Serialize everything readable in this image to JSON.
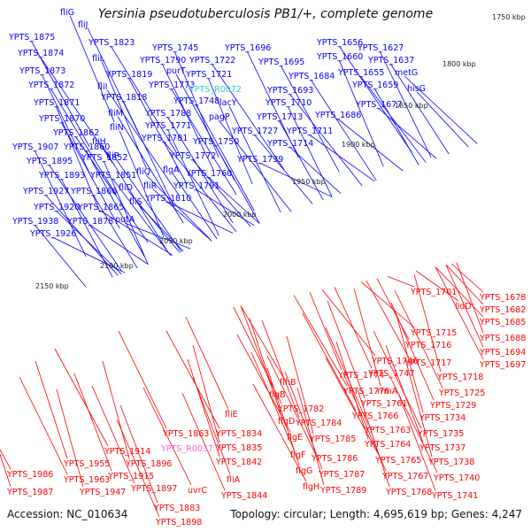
{
  "title": "Yersinia pseudotuberculosis PB1/+, complete genome",
  "footer": {
    "accession": "Accession: NC_010634",
    "topology": "Topology: circular; Length: 4,695,619 bp; Genes: 4,247"
  },
  "scale_marks": [
    "1750 kbp",
    "1800 kbp",
    "1850 kbp",
    "1900 kbp",
    "1950 kbp",
    "2000 kbp",
    "2050 kbp",
    "2100 kbp",
    "2150 kbp"
  ],
  "labels_blue": [
    "fliG",
    "fliJ",
    "YPTS_1875",
    "YPTS_1823",
    "YPTS_1874",
    "fliL",
    "YPTS_1873",
    "YPTS_1819",
    "YPTS_1872",
    "fliI",
    "YPTS_1871",
    "YPTS_1818",
    "YPTS_1870",
    "fliM",
    "YPTS_1862",
    "fliN",
    "YPTS_1907",
    "YPTS_1860",
    "fliH",
    "YPTS_1895",
    "YPTS_1852",
    "YPTS_1893",
    "YPTS_1851",
    "fliQ",
    "YPTS_1927",
    "YPTS_1866",
    "fliD",
    "fliR",
    "YPTS_1920",
    "YPTS_1865",
    "fliS",
    "YPTS_1938",
    "YPTS_1878",
    "putA",
    "YPTS_1926",
    "YPTS_1745",
    "YPTS_1790",
    "purT",
    "YPTS_1773",
    "YPTS_1722",
    "YPTS_1721",
    "YPTS_1696",
    "YPTS_1695",
    "YPTS_1684",
    "YPTS_1656",
    "YPTS_1660",
    "YPTS_1627",
    "YPTS_1637",
    "YPTS_1655",
    "metG",
    "YPTS_1659",
    "hisG",
    "YPTS_1677",
    "YPTS_1686",
    "YPTS_1693",
    "YPTS_1710",
    "lacY",
    "YPTS_1748",
    "YPTS_1788",
    "pagP",
    "YPTS_1713",
    "YPTS_1771",
    "YPTS_1727",
    "YPTS_1711",
    "YPTS_1781",
    "YPTS_1750",
    "YPTS_1714",
    "YPTS_1772",
    "fliP",
    "YPTS_1739",
    "flgA",
    "YPTS_1760",
    "YPTS_1791",
    "YPTS_1810"
  ],
  "label_cyan": "YPTS_R0072",
  "labels_red": [
    "YPTS_1701",
    "YPTS_1678",
    "YPTS_1682",
    "lldD",
    "YPTS_1685",
    "YPTS_1715",
    "YPTS_1688",
    "YPTS_1716",
    "YPTS_1694",
    "YPTS_1717",
    "YPTS_1697",
    "YPTS_1746",
    "YPTS_1718",
    "YPTS_1774",
    "YPTS_1747",
    "flhB",
    "YPTS_1725",
    "YPTS_1776",
    "rrmA",
    "flgB",
    "YPTS_1761",
    "YPTS_1729",
    "YPTS_1782",
    "YPTS_1766",
    "YPTS_1734",
    "flgD",
    "YPTS_1784",
    "YPTS_1763",
    "YPTS_1735",
    "flgE",
    "YPTS_1785",
    "YPTS_1764",
    "YPTS_1737",
    "flgF",
    "YPTS_1786",
    "YPTS_1765",
    "YPTS_1738",
    "flgG",
    "YPTS_1787",
    "YPTS_1767",
    "YPTS_1740",
    "flgH",
    "YPTS_1789",
    "YPTS_1768",
    "YPTS_1741",
    "fliE",
    "YPTS_1863",
    "YPTS_1834",
    "YPTS_1835",
    "YPTS_1842",
    "fliA",
    "YPTS_1844",
    "uvrC",
    "YPTS_1914",
    "YPTS_1896",
    "YPTS_1955",
    "YPTS_1915",
    "YPTS_1897",
    "YPTS_1963",
    "YPTS_1986",
    "YPTS_1947",
    "YPTS_1987",
    "YPTS_1883",
    "YPTS_1898"
  ],
  "label_pink": "YPTS_R0037",
  "colors": {
    "forward": "#0000ff",
    "reverse": "#ff0000",
    "rna": "#33cccc",
    "pseudo": "#ff66cc",
    "backbone": "#888888",
    "tick": "#22aa22"
  }
}
